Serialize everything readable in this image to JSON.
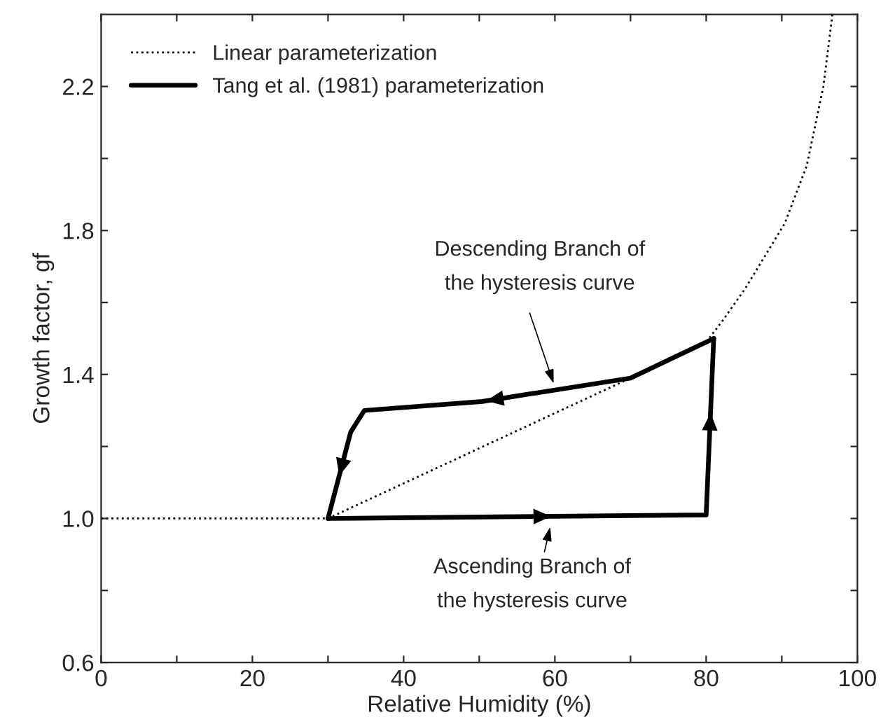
{
  "chart_data": {
    "type": "line",
    "xlabel": "Relative Humidity (%)",
    "ylabel": "Growth factor, gf",
    "xlim": [
      0,
      100
    ],
    "ylim": [
      0.6,
      2.4
    ],
    "xticks": [
      0,
      {
        "value": 10,
        "label": null
      },
      20,
      {
        "value": 30,
        "label": null
      },
      40,
      {
        "value": 50,
        "label": null
      },
      60,
      {
        "value": 70,
        "label": null
      },
      80,
      {
        "value": 90,
        "label": null
      },
      100
    ],
    "yticks": [
      0.6,
      {
        "value": 0.8,
        "label": null
      },
      {
        "value": 1.0,
        "label": "1.0"
      },
      {
        "value": 1.2,
        "label": null
      },
      1.4,
      {
        "value": 1.6,
        "label": null
      },
      1.8,
      {
        "value": 2.0,
        "label": null
      },
      2.2
    ],
    "legend": "top left",
    "grid": false,
    "series": [
      {
        "name": "Linear parameterization",
        "color": "#000000",
        "line_style": "dotted",
        "x": [
          0,
          30,
          70,
          80,
          82.2,
          85.2,
          90.4,
          93.3,
          95.5,
          96.7
        ],
        "values": [
          1.0,
          1.0,
          1.39,
          1.49,
          1.55,
          1.64,
          1.82,
          1.98,
          2.2,
          2.4
        ]
      },
      {
        "name": "Tang et al. (1981) parameterization",
        "color": "#000000",
        "line_style": "solid",
        "x": [
          30,
          80,
          81
        ],
        "values": [
          1.0,
          1.01,
          1.5
        ]
      },
      {
        "color": "#000000",
        "line_style": "solid",
        "x": [
          81,
          70,
          50.4,
          34.8,
          33,
          30
        ],
        "values": [
          1.5,
          1.39,
          1.325,
          1.3,
          1.24,
          1.0
        ]
      }
    ],
    "annotations": [
      "Descending Branch of\nthe hysteresis curve",
      "Ascending Branch of\nthe hysteresis curve"
    ]
  }
}
